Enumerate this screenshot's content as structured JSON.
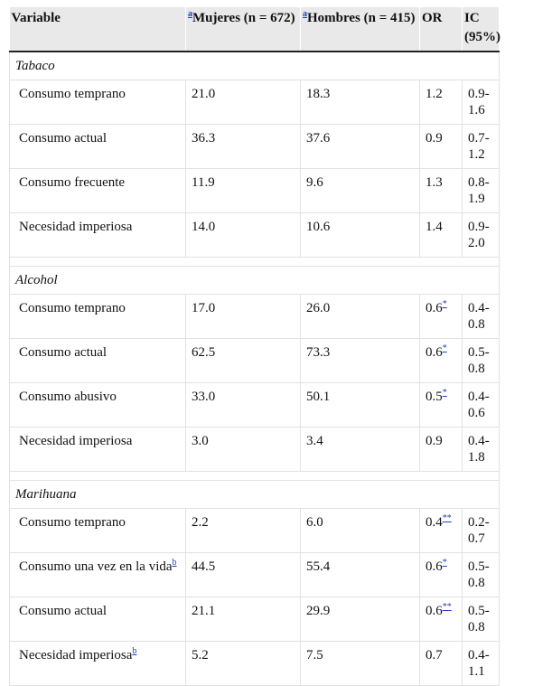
{
  "header": {
    "variable": "Variable",
    "mujeres_sup": "a",
    "mujeres": "Mujeres (n = 672)",
    "hombres_sup": "a",
    "hombres": "Hombres (n = 415)",
    "or": "OR",
    "ic": "IC (95%)"
  },
  "sections": [
    {
      "title": "Tabaco",
      "rows": [
        {
          "variable": "Consumo temprano",
          "var_sup": "",
          "mujeres": "21.0",
          "hombres": "18.3",
          "or": "1.2",
          "or_sup": "",
          "ic": "0.9-1.6"
        },
        {
          "variable": "Consumo actual",
          "var_sup": "",
          "mujeres": "36.3",
          "hombres": "37.6",
          "or": "0.9",
          "or_sup": "",
          "ic": "0.7-1.2"
        },
        {
          "variable": "Consumo frecuente",
          "var_sup": "",
          "mujeres": "11.9",
          "hombres": "9.6",
          "or": "1.3",
          "or_sup": "",
          "ic": "0.8-1.9"
        },
        {
          "variable": "Necesidad imperiosa",
          "var_sup": "",
          "mujeres": "14.0",
          "hombres": "10.6",
          "or": "1.4",
          "or_sup": "",
          "ic": "0.9-2.0"
        }
      ]
    },
    {
      "title": "Alcohol",
      "rows": [
        {
          "variable": "Consumo temprano",
          "var_sup": "",
          "mujeres": "17.0",
          "hombres": "26.0",
          "or": "0.6",
          "or_sup": "*",
          "ic": "0.4-0.8"
        },
        {
          "variable": "Consumo actual",
          "var_sup": "",
          "mujeres": "62.5",
          "hombres": "73.3",
          "or": "0.6",
          "or_sup": "*",
          "ic": "0.5-0.8"
        },
        {
          "variable": "Consumo abusivo",
          "var_sup": "",
          "mujeres": "33.0",
          "hombres": "50.1",
          "or": "0.5",
          "or_sup": "*",
          "ic": "0.4-0.6"
        },
        {
          "variable": "Necesidad imperiosa",
          "var_sup": "",
          "mujeres": "3.0",
          "hombres": "3.4",
          "or": "0.9",
          "or_sup": "",
          "ic": "0.4-1.8"
        }
      ]
    },
    {
      "title": "Marihuana",
      "rows": [
        {
          "variable": "Consumo temprano",
          "var_sup": "",
          "mujeres": "2.2",
          "hombres": "6.0",
          "or": "0.4",
          "or_sup": "**",
          "ic": "0.2-0.7"
        },
        {
          "variable": "Consumo una vez en la vida",
          "var_sup": "b",
          "mujeres": "44.5",
          "hombres": "55.4",
          "or": "0.6",
          "or_sup": "*",
          "ic": "0.5-0.8"
        },
        {
          "variable": "Consumo actual",
          "var_sup": "",
          "mujeres": "21.1",
          "hombres": "29.9",
          "or": "0.6",
          "or_sup": "**",
          "ic": "0.5-0.8"
        },
        {
          "variable": "Necesidad imperiosa",
          "var_sup": "b",
          "mujeres": "5.2",
          "hombres": "7.5",
          "or": "0.7",
          "or_sup": "",
          "ic": "0.4-1.1"
        }
      ]
    }
  ]
}
